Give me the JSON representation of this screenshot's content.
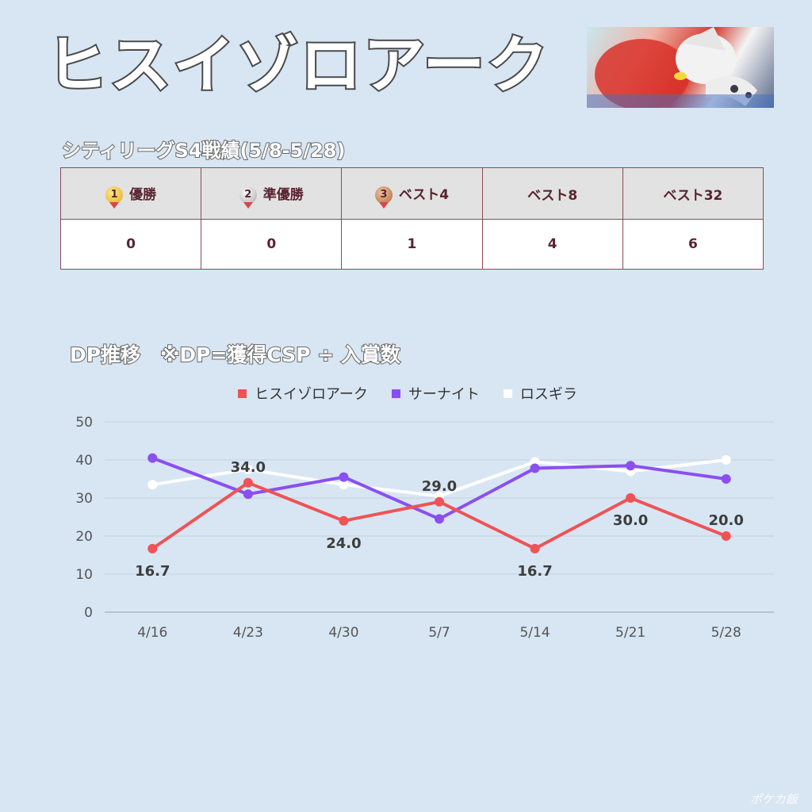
{
  "title": "ヒスイゾロアーク",
  "subtitle": "シティリーグS4戦績(5/8-5/28)",
  "results_table": {
    "headers": [
      "優勝",
      "準優勝",
      "ベスト4",
      "ベスト8",
      "ベスト32"
    ],
    "medals": [
      "1",
      "2",
      "3",
      "",
      ""
    ],
    "values": [
      "0",
      "0",
      "1",
      "4",
      "6"
    ]
  },
  "chart_title": "DP推移　※DP=獲得CSP ÷ 入賞数",
  "watermark": "ポケカ飯",
  "chart_data": {
    "type": "line",
    "categories": [
      "4/16",
      "4/23",
      "4/30",
      "5/7",
      "5/14",
      "5/21",
      "5/28"
    ],
    "ylim": [
      0,
      50
    ],
    "yticks": [
      0,
      10,
      20,
      30,
      40,
      50
    ],
    "grid": true,
    "legend_position": "top",
    "series": [
      {
        "name": "ヒスイゾロアーク",
        "color": "#ef5356",
        "values": [
          16.7,
          34.0,
          24.0,
          29.0,
          16.7,
          30.0,
          20.0
        ],
        "labels": [
          "16.7",
          "34.0",
          "24.0",
          "29.0",
          "16.7",
          "30.0",
          "20.0"
        ]
      },
      {
        "name": "サーナイト",
        "color": "#8b4ff0",
        "values": [
          40.5,
          31.0,
          35.5,
          24.5,
          37.8,
          38.5,
          35.0
        ]
      },
      {
        "name": "ロスギラ",
        "color": "#ffffff",
        "values": [
          33.5,
          37.5,
          33.5,
          30.5,
          39.5,
          37.0,
          40.0
        ]
      }
    ]
  }
}
